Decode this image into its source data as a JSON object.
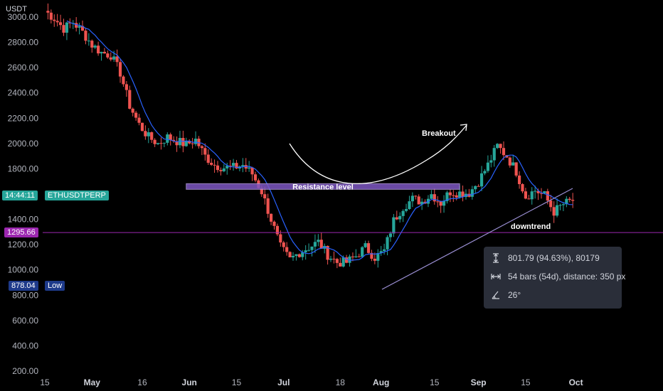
{
  "chart_data": {
    "type": "candlestick",
    "symbol": "ETHUSDTPERP",
    "currency": "USDT",
    "y_ticks": [
      "3000.00",
      "2800.00",
      "2600.00",
      "2400.00",
      "2200.00",
      "2000.00",
      "1800.00",
      "1400.00",
      "1200.00",
      "1000.00",
      "800.00",
      "600.00",
      "400.00",
      "200.00"
    ],
    "y_tick_values": [
      3000,
      2800,
      2600,
      2400,
      2200,
      2000,
      1800,
      1400,
      1200,
      1000,
      800,
      600,
      400,
      200
    ],
    "x_ticks": [
      "15",
      "May",
      "16",
      "Jun",
      "15",
      "Jul",
      "18",
      "Aug",
      "15",
      "Sep",
      "15",
      "Oct"
    ],
    "ylim": [
      190,
      3060
    ],
    "close_path": [
      [
        0,
        3050
      ],
      [
        3,
        2990
      ],
      [
        6,
        2910
      ],
      [
        9,
        2960
      ],
      [
        12,
        2880
      ],
      [
        15,
        2780
      ],
      [
        18,
        2720
      ],
      [
        21,
        2700
      ],
      [
        24,
        2560
      ],
      [
        27,
        2300
      ],
      [
        30,
        2150
      ],
      [
        33,
        2050
      ],
      [
        36,
        2000
      ],
      [
        39,
        2050
      ],
      [
        42,
        2020
      ],
      [
        45,
        1990
      ],
      [
        48,
        2030
      ],
      [
        51,
        1900
      ],
      [
        54,
        1830
      ],
      [
        57,
        1810
      ],
      [
        60,
        1810
      ],
      [
        63,
        1830
      ],
      [
        66,
        1760
      ],
      [
        69,
        1620
      ],
      [
        72,
        1400
      ],
      [
        75,
        1180
      ],
      [
        78,
        1080
      ],
      [
        81,
        1140
      ],
      [
        84,
        1180
      ],
      [
        87,
        1220
      ],
      [
        90,
        1120
      ],
      [
        93,
        1060
      ],
      [
        96,
        1060
      ],
      [
        99,
        1110
      ],
      [
        102,
        1180
      ],
      [
        105,
        1100
      ],
      [
        108,
        1150
      ],
      [
        111,
        1390
      ],
      [
        114,
        1500
      ],
      [
        117,
        1560
      ],
      [
        120,
        1540
      ],
      [
        123,
        1600
      ],
      [
        126,
        1530
      ],
      [
        129,
        1620
      ],
      [
        132,
        1610
      ],
      [
        135,
        1610
      ],
      [
        138,
        1700
      ],
      [
        141,
        1830
      ],
      [
        144,
        1980
      ],
      [
        147,
        1900
      ],
      [
        150,
        1780
      ],
      [
        153,
        1580
      ],
      [
        156,
        1630
      ],
      [
        159,
        1590
      ],
      [
        162,
        1460
      ],
      [
        165,
        1520
      ],
      [
        168,
        1550
      ]
    ],
    "last_price": "14:44:11",
    "horizontal_line": "1295.66",
    "low_label_value": "878.04",
    "low_label": "Low",
    "resistance_level": 1660,
    "current_level": 1560,
    "annotations": {
      "resistance": "Resistance level",
      "breakout": "Breakout",
      "downtrend": "downtrend"
    },
    "trendline": {
      "from": [
        105,
        830
      ],
      "to": [
        165,
        1580
      ]
    },
    "colors": {
      "up": "#26a69a",
      "down": "#ef5350",
      "ma": "#2962ff",
      "resistance": "#7e57c2",
      "hline": "#9c27b0",
      "trend": "#9b8fd4"
    }
  },
  "measure": {
    "price": "801.79 (94.63%), 80179",
    "bars": "54 bars (54d), distance: 350 px",
    "angle": "26°"
  }
}
